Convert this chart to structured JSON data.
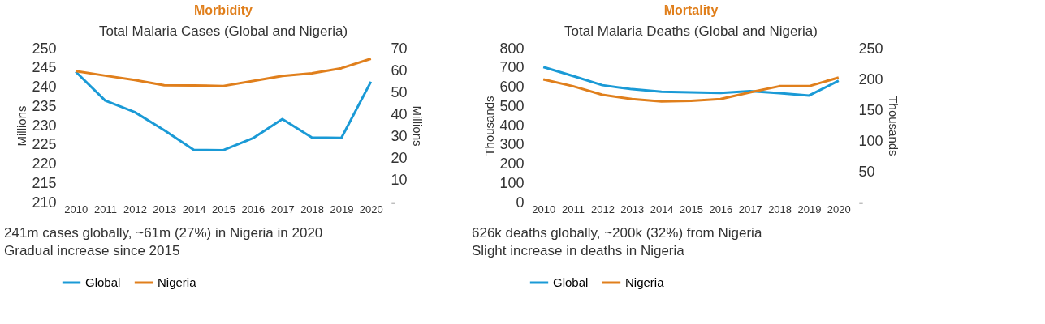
{
  "chart_data": [
    {
      "type": "line",
      "title": "Morbidity",
      "subtitle": "Total Malaria Cases (Global and Nigeria)",
      "ylabel": "Millions",
      "y2label": "Millions",
      "categories": [
        "2010",
        "2011",
        "2012",
        "2013",
        "2014",
        "2015",
        "2016",
        "2017",
        "2018",
        "2019",
        "2020"
      ],
      "series": [
        {
          "name": "Global",
          "color": "#1a9ad6",
          "values": [
            244.0,
            236.5,
            233.5,
            228.8,
            223.7,
            223.6,
            226.7,
            231.7,
            226.9,
            226.8,
            241.4
          ]
        },
        {
          "name": "Nigeria",
          "color": "#e07f1c",
          "axis": "y2",
          "values": [
            59.8,
            57.7,
            55.7,
            53.3,
            53.2,
            53.0,
            55.3,
            57.6,
            58.8,
            61.1,
            65.4
          ]
        }
      ],
      "ylim": [
        210,
        250
      ],
      "yticks": [
        210,
        215,
        220,
        225,
        230,
        235,
        240,
        245,
        250
      ],
      "y2lim": [
        0,
        70
      ],
      "y2ticks": [
        {
          "value": 0,
          "label": "-"
        },
        10,
        20,
        30,
        40,
        50,
        60,
        70
      ],
      "grid": false,
      "legend": "bottom",
      "marker": "none",
      "line_style": "solid",
      "annotations": [
        "241m cases globally, ~61m (27%) in Nigeria in 2020",
        "Gradual increase since 2015"
      ]
    },
    {
      "type": "line",
      "title": "Mortality",
      "subtitle": "Total Malaria Deaths (Global and Nigeria)",
      "ylabel": "Thousands",
      "y2label": "Thousands",
      "categories": [
        "2010",
        "2011",
        "2012",
        "2013",
        "2014",
        "2015",
        "2016",
        "2017",
        "2018",
        "2019",
        "2020"
      ],
      "series": [
        {
          "name": "Global",
          "color": "#1a9ad6",
          "values": [
            704,
            658,
            610,
            589,
            576,
            573,
            569,
            579,
            568,
            556,
            633
          ]
        },
        {
          "name": "Nigeria",
          "color": "#e07f1c",
          "axis": "y2",
          "values": [
            200,
            189,
            175,
            168,
            164,
            165,
            168,
            179,
            189,
            189,
            203
          ]
        }
      ],
      "ylim": [
        0,
        800
      ],
      "yticks": [
        0,
        100,
        200,
        300,
        400,
        500,
        600,
        700,
        800
      ],
      "y2lim": [
        0,
        250
      ],
      "y2ticks": [
        {
          "value": 0,
          "label": "-"
        },
        50,
        100,
        150,
        200,
        250
      ],
      "grid": false,
      "legend": "bottom",
      "marker": "none",
      "line_style": "solid",
      "annotations": [
        "626k deaths globally, ~200k (32%) from Nigeria",
        "Slight increase in deaths in Nigeria"
      ]
    }
  ]
}
